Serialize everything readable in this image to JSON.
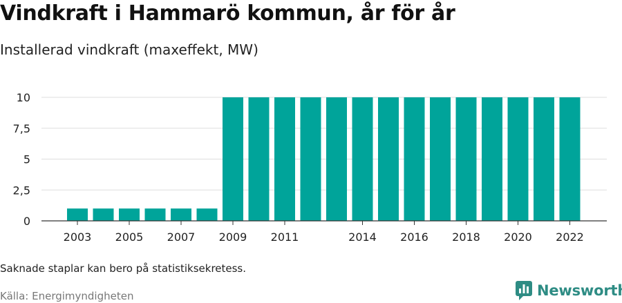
{
  "title": "Vindkraft i Hammarö kommun, år för år",
  "subtitle": "Installerad vindkraft (maxeffekt, MW)",
  "note": "Saknade staplar kan bero på statistiksekretess.",
  "source": "Källa: Energimyndigheten",
  "brand": "Newsworthy",
  "colors": {
    "bar": "#00a49a",
    "grid": "#dddddd",
    "axis": "#333333",
    "brand": "#2e8c84"
  },
  "chart_data": {
    "type": "bar",
    "categories": [
      "2003",
      "2004",
      "2005",
      "2006",
      "2007",
      "2008",
      "2009",
      "2010",
      "2011",
      "2012",
      "2013",
      "2014",
      "2015",
      "2016",
      "2017",
      "2018",
      "2019",
      "2020",
      "2021",
      "2022"
    ],
    "values": [
      1,
      1,
      1,
      1,
      1,
      1,
      10,
      10,
      10,
      10,
      10,
      10,
      10,
      10,
      10,
      10,
      10,
      10,
      10,
      10
    ],
    "x_tick_labels": [
      "2003",
      "2005",
      "2007",
      "2009",
      "2011",
      "2014",
      "2016",
      "2018",
      "2020",
      "2022"
    ],
    "y_ticks": [
      0,
      2.5,
      5,
      7.5,
      10
    ],
    "y_tick_labels": [
      "0",
      "2,5",
      "5",
      "7,5",
      "10"
    ],
    "ylim": [
      0,
      10
    ],
    "grid": true,
    "legend": "none"
  }
}
